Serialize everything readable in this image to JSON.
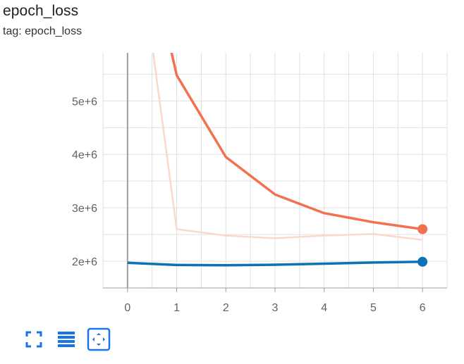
{
  "card": {
    "title": "epoch_loss",
    "tag": "tag: epoch_loss"
  },
  "toolbar": {
    "buttons": [
      {
        "icon": "fullscreen-icon"
      },
      {
        "icon": "data-table-icon"
      },
      {
        "icon": "fit-domain-icon",
        "active": true
      }
    ]
  },
  "colors": {
    "train": "#f4714f",
    "train_raw": "#fcd8cc",
    "validation": "#0b73b5",
    "grid": "#e0e0e0",
    "axis": "#9e9e9e",
    "tick_text": "#616161",
    "icon": "#1a73e8"
  },
  "chart_data": {
    "type": "line",
    "xlim": [
      -0.5,
      6.5
    ],
    "ylim": [
      1500000,
      5900000
    ],
    "xticks": [
      0,
      1,
      2,
      3,
      4,
      5,
      6
    ],
    "xtick_labels": [
      "0",
      "1",
      "2",
      "3",
      "4",
      "5",
      "6"
    ],
    "yticks": [
      2000000,
      3000000,
      4000000,
      5000000
    ],
    "ytick_labels": [
      "2e+6",
      "3e+6",
      "4e+6",
      "5e+6"
    ],
    "grid": true,
    "series": [
      {
        "role": "raw",
        "color": "#fcd8cc",
        "x": [
          0,
          1,
          2,
          3,
          4,
          5,
          6
        ],
        "y": [
          9500000,
          2600000,
          2480000,
          2430000,
          2480000,
          2510000,
          2400000
        ]
      },
      {
        "role": "smoothed",
        "color": "#f4714f",
        "x": [
          0,
          1,
          2,
          3,
          4,
          5,
          6
        ],
        "y": [
          9500000,
          5480000,
          3950000,
          3250000,
          2900000,
          2730000,
          2600000
        ]
      },
      {
        "role": "smoothed",
        "color": "#0b73b5",
        "x": [
          0,
          1,
          2,
          3,
          4,
          5,
          6
        ],
        "y": [
          1970000,
          1930000,
          1925000,
          1935000,
          1955000,
          1975000,
          1990000
        ]
      }
    ]
  }
}
